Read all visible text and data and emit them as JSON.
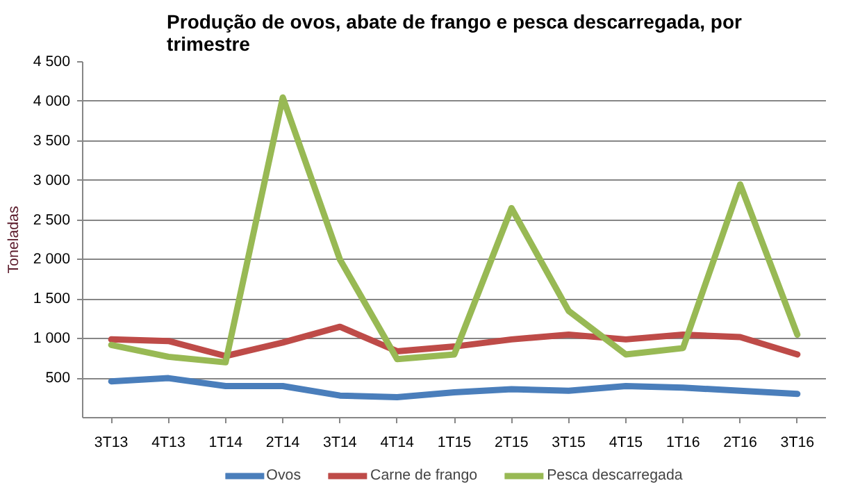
{
  "chart_data": {
    "type": "line",
    "title": "Produção de ovos, abate de frango e pesca descarregada, por trimestre",
    "ylabel": "Toneladas",
    "categories": [
      "3T13",
      "4T13",
      "1T14",
      "2T14",
      "3T14",
      "4T14",
      "1T15",
      "2T15",
      "3T15",
      "4T15",
      "1T16",
      "2T16",
      "3T16"
    ],
    "series": [
      {
        "name": "Ovos",
        "color": "#4a7ebb",
        "values": [
          460,
          500,
          400,
          400,
          280,
          260,
          320,
          360,
          340,
          400,
          380,
          340,
          300
        ]
      },
      {
        "name": "Carne de frango",
        "color": "#be4b48",
        "values": [
          990,
          970,
          780,
          950,
          1150,
          840,
          900,
          990,
          1050,
          990,
          1050,
          1020,
          800
        ]
      },
      {
        "name": "Pesca descarregada",
        "color": "#98b954",
        "values": [
          920,
          770,
          700,
          4050,
          2000,
          740,
          800,
          2650,
          1350,
          800,
          880,
          2950,
          1050
        ]
      }
    ],
    "ylim": [
      0,
      4500
    ],
    "yticks": [
      {
        "value": 500,
        "label": "500"
      },
      {
        "value": 1000,
        "label": "1 000"
      },
      {
        "value": 1500,
        "label": "1 500"
      },
      {
        "value": 2000,
        "label": "2 000"
      },
      {
        "value": 2500,
        "label": "2 500"
      },
      {
        "value": 3000,
        "label": "3 000"
      },
      {
        "value": 3500,
        "label": "3 500"
      },
      {
        "value": 4000,
        "label": "4 000"
      },
      {
        "value": 4500,
        "label": "4 500"
      }
    ],
    "grid": "y",
    "legend": "bottom",
    "line_style": "solid",
    "marker": "none"
  }
}
